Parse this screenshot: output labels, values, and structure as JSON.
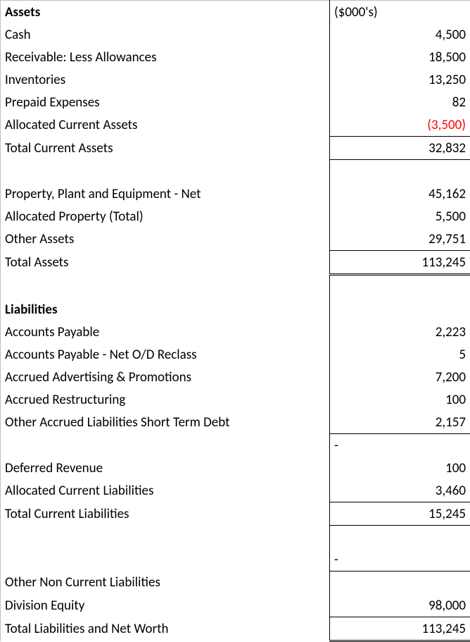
{
  "header": {
    "label": "Assets",
    "unit": "($000's)"
  },
  "rows": [
    {
      "label": "Cash",
      "value": "4,500",
      "labelBold": false,
      "neg": false,
      "valueClasses": "",
      "labelClasses": ""
    },
    {
      "label": "Receivable: Less Allowances",
      "value": "18,500",
      "labelBold": false,
      "neg": false,
      "valueClasses": "",
      "labelClasses": ""
    },
    {
      "label": "Inventories",
      "value": "13,250",
      "labelBold": false,
      "neg": false,
      "valueClasses": "",
      "labelClasses": ""
    },
    {
      "label": "Prepaid Expenses",
      "value": "82",
      "labelBold": false,
      "neg": false,
      "valueClasses": "",
      "labelClasses": ""
    },
    {
      "label": "Allocated Current Assets",
      "value": "(3,500)",
      "labelBold": false,
      "neg": true,
      "valueClasses": "bb1",
      "labelClasses": ""
    },
    {
      "label": "Total Current Assets",
      "value": "32,832",
      "labelBold": false,
      "neg": false,
      "valueClasses": "bb1",
      "labelClasses": ""
    },
    {
      "label": "",
      "value": "",
      "labelBold": false,
      "neg": false,
      "valueClasses": "",
      "labelClasses": ""
    },
    {
      "label": "Property, Plant and Equipment - Net",
      "value": "45,162",
      "labelBold": false,
      "neg": false,
      "valueClasses": "",
      "labelClasses": ""
    },
    {
      "label": "Allocated Property (Total)",
      "value": "5,500",
      "labelBold": false,
      "neg": false,
      "valueClasses": "",
      "labelClasses": ""
    },
    {
      "label": "Other Assets",
      "value": "29,751",
      "labelBold": false,
      "neg": false,
      "valueClasses": "bb1",
      "labelClasses": ""
    },
    {
      "label": "Total Assets",
      "value": "113,245",
      "labelBold": false,
      "neg": false,
      "valueClasses": "bbd",
      "labelClasses": ""
    },
    {
      "label": "",
      "value": "",
      "labelBold": false,
      "neg": false,
      "valueClasses": "",
      "labelClasses": ""
    },
    {
      "label": "Liabilities",
      "value": "",
      "labelBold": true,
      "neg": false,
      "valueClasses": "",
      "labelClasses": ""
    },
    {
      "label": "Accounts Payable",
      "value": "2,223",
      "labelBold": false,
      "neg": false,
      "valueClasses": "",
      "labelClasses": ""
    },
    {
      "label": "Accounts Payable - Net O/D Reclass",
      "value": "5",
      "labelBold": false,
      "neg": false,
      "valueClasses": "",
      "labelClasses": ""
    },
    {
      "label": "Accrued Advertising & Promotions",
      "value": "7,200",
      "labelBold": false,
      "neg": false,
      "valueClasses": "",
      "labelClasses": ""
    },
    {
      "label": "Accrued Restructuring",
      "value": "100",
      "labelBold": false,
      "neg": false,
      "valueClasses": "",
      "labelClasses": ""
    },
    {
      "label": "Other Accrued Liabilities Short Term Debt",
      "value": "2,157",
      "labelBold": false,
      "neg": false,
      "valueClasses": "bb1",
      "labelClasses": ""
    },
    {
      "label": "",
      "value": "-",
      "labelBold": false,
      "neg": false,
      "valueClasses": "dash",
      "labelClasses": ""
    },
    {
      "label": "Deferred Revenue",
      "value": "100",
      "labelBold": false,
      "neg": false,
      "valueClasses": "",
      "labelClasses": ""
    },
    {
      "label": "Allocated Current Liabilities",
      "value": "3,460",
      "labelBold": false,
      "neg": false,
      "valueClasses": "bb1",
      "labelClasses": ""
    },
    {
      "label": "Total Current Liabilities",
      "value": "15,245",
      "labelBold": false,
      "neg": false,
      "valueClasses": "bb1",
      "labelClasses": ""
    },
    {
      "label": "",
      "value": "",
      "labelBold": false,
      "neg": false,
      "valueClasses": "",
      "labelClasses": ""
    },
    {
      "label": "",
      "value": "-",
      "labelBold": false,
      "neg": false,
      "valueClasses": "dash bb1",
      "labelClasses": ""
    },
    {
      "label": "Other Non Current Liabilities",
      "value": "",
      "labelBold": false,
      "neg": false,
      "valueClasses": "",
      "labelClasses": ""
    },
    {
      "label": "Division Equity",
      "value": "98,000",
      "labelBold": false,
      "neg": false,
      "valueClasses": "bb1",
      "labelClasses": ""
    },
    {
      "label": "Total Liabilities and Net Worth",
      "value": "113,245",
      "labelBold": false,
      "neg": false,
      "valueClasses": "bbd",
      "labelClasses": ""
    }
  ]
}
